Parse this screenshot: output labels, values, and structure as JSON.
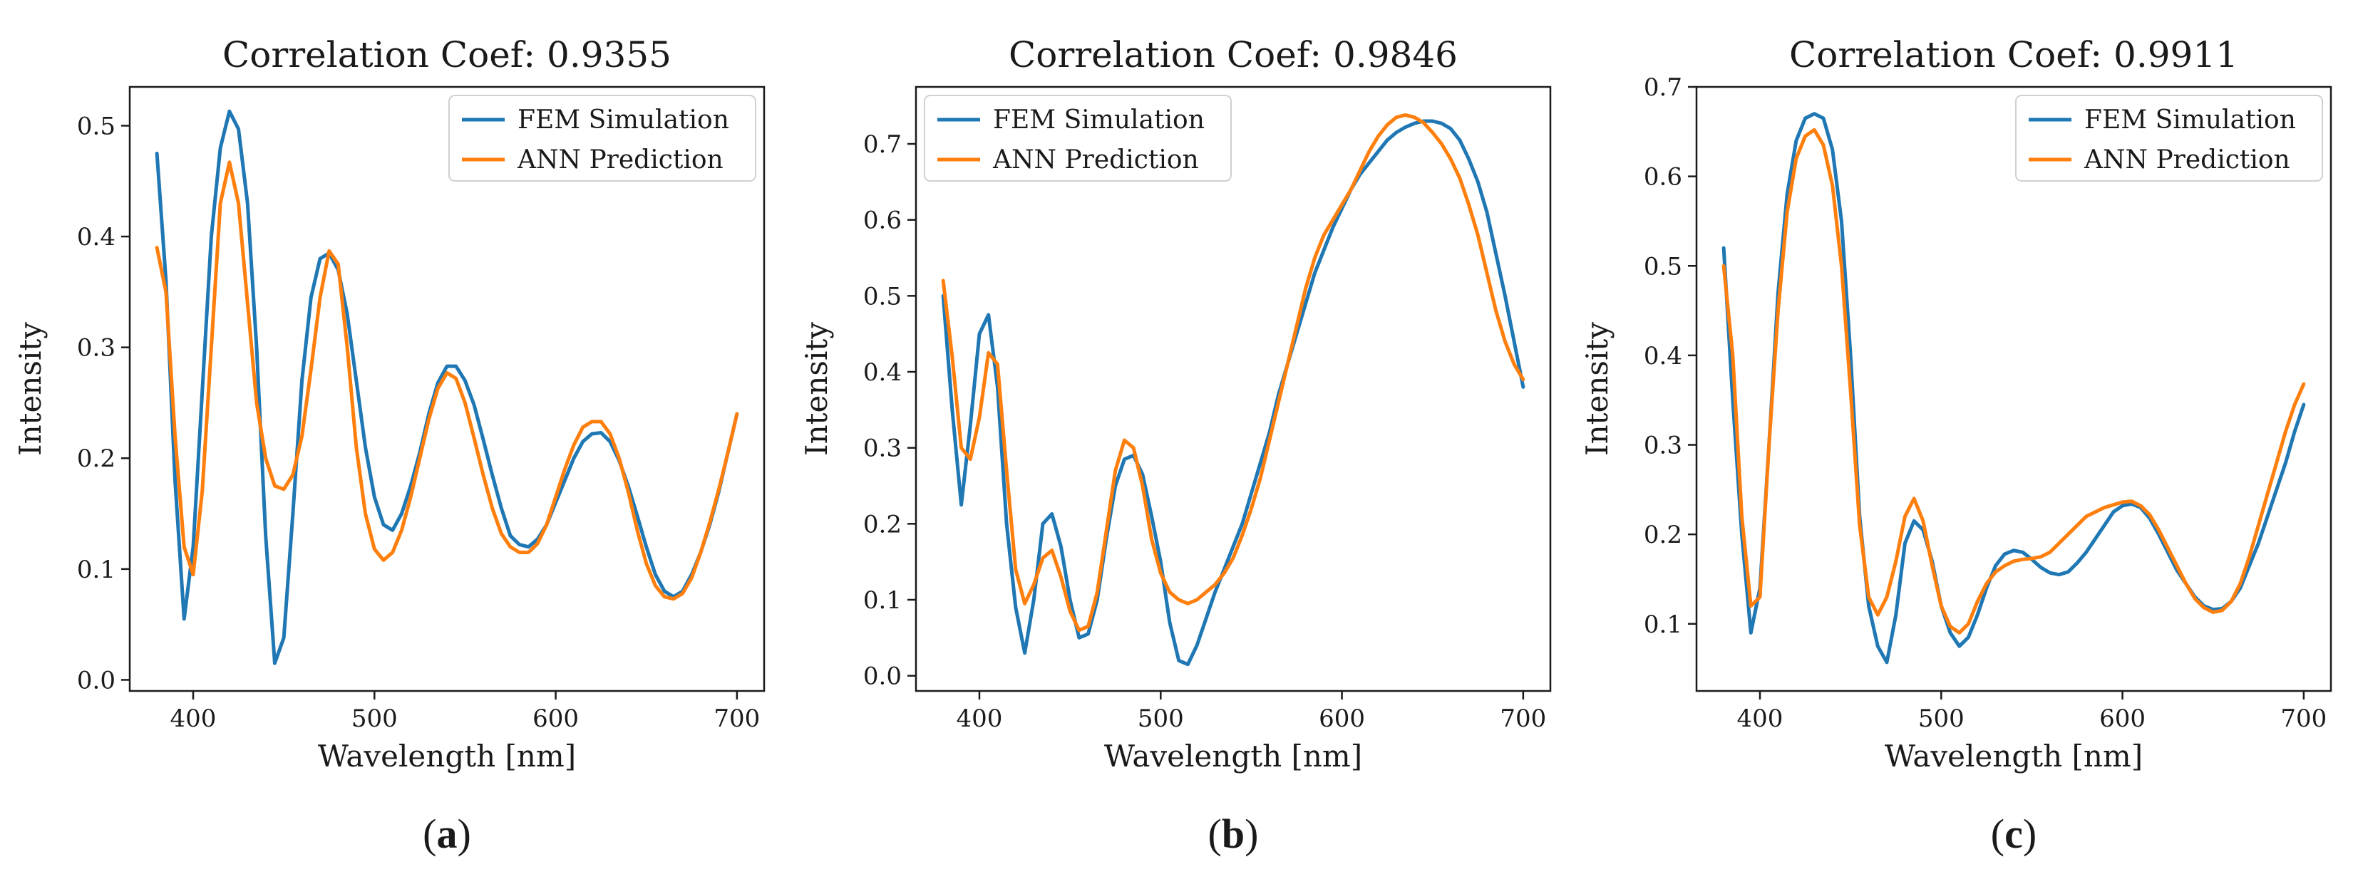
{
  "chart_data": [
    {
      "type": "line",
      "panel_label": "a",
      "title": "Correlation Coef: 0.9355",
      "xlabel": "Wavelength [nm]",
      "ylabel": "Intensity",
      "xlim": [
        365,
        715
      ],
      "ylim": [
        -0.01,
        0.535
      ],
      "xticks": [
        400,
        500,
        600,
        700
      ],
      "yticks": [
        0.0,
        0.1,
        0.2,
        0.3,
        0.4,
        0.5
      ],
      "ytick_labels": [
        "0.0",
        "0.1",
        "0.2",
        "0.3",
        "0.4",
        "0.5"
      ],
      "legend_position": "top-right",
      "series": [
        {
          "name": "FEM Simulation",
          "color": "#1f77b4",
          "x": [
            380,
            385,
            390,
            395,
            400,
            405,
            410,
            415,
            420,
            425,
            430,
            435,
            440,
            445,
            450,
            455,
            460,
            465,
            470,
            475,
            480,
            485,
            490,
            495,
            500,
            505,
            510,
            515,
            520,
            525,
            530,
            535,
            540,
            545,
            550,
            555,
            560,
            565,
            570,
            575,
            580,
            585,
            590,
            595,
            600,
            605,
            610,
            615,
            620,
            625,
            630,
            635,
            640,
            645,
            650,
            655,
            660,
            665,
            670,
            675,
            680,
            685,
            690,
            695,
            700
          ],
          "y": [
            0.475,
            0.36,
            0.18,
            0.055,
            0.12,
            0.26,
            0.4,
            0.48,
            0.513,
            0.497,
            0.43,
            0.3,
            0.13,
            0.015,
            0.038,
            0.15,
            0.27,
            0.345,
            0.38,
            0.385,
            0.37,
            0.33,
            0.27,
            0.21,
            0.165,
            0.14,
            0.135,
            0.15,
            0.175,
            0.205,
            0.24,
            0.268,
            0.283,
            0.283,
            0.27,
            0.248,
            0.217,
            0.185,
            0.155,
            0.13,
            0.122,
            0.12,
            0.127,
            0.14,
            0.16,
            0.18,
            0.2,
            0.215,
            0.222,
            0.223,
            0.215,
            0.198,
            0.175,
            0.148,
            0.12,
            0.095,
            0.08,
            0.075,
            0.08,
            0.095,
            0.115,
            0.14,
            0.17,
            0.205,
            0.24
          ]
        },
        {
          "name": "ANN Prediction",
          "color": "#ff7f0e",
          "x": [
            380,
            385,
            390,
            395,
            400,
            405,
            410,
            415,
            420,
            425,
            430,
            435,
            440,
            445,
            450,
            455,
            460,
            465,
            470,
            475,
            480,
            485,
            490,
            495,
            500,
            505,
            510,
            515,
            520,
            525,
            530,
            535,
            540,
            545,
            550,
            555,
            560,
            565,
            570,
            575,
            580,
            585,
            590,
            595,
            600,
            605,
            610,
            615,
            620,
            625,
            630,
            635,
            640,
            645,
            650,
            655,
            660,
            665,
            670,
            675,
            680,
            685,
            690,
            695,
            700
          ],
          "y": [
            0.39,
            0.35,
            0.22,
            0.12,
            0.095,
            0.17,
            0.3,
            0.43,
            0.467,
            0.43,
            0.34,
            0.25,
            0.2,
            0.175,
            0.172,
            0.185,
            0.22,
            0.28,
            0.345,
            0.387,
            0.375,
            0.3,
            0.21,
            0.15,
            0.118,
            0.108,
            0.115,
            0.135,
            0.165,
            0.2,
            0.235,
            0.263,
            0.277,
            0.272,
            0.25,
            0.218,
            0.185,
            0.155,
            0.132,
            0.12,
            0.115,
            0.115,
            0.123,
            0.14,
            0.165,
            0.19,
            0.212,
            0.228,
            0.233,
            0.233,
            0.222,
            0.2,
            0.17,
            0.135,
            0.105,
            0.085,
            0.075,
            0.073,
            0.078,
            0.092,
            0.115,
            0.142,
            0.172,
            0.205,
            0.24
          ]
        }
      ]
    },
    {
      "type": "line",
      "panel_label": "b",
      "title": "Correlation Coef: 0.9846",
      "xlabel": "Wavelength [nm]",
      "ylabel": "Intensity",
      "xlim": [
        365,
        715
      ],
      "ylim": [
        -0.02,
        0.775
      ],
      "xticks": [
        400,
        500,
        600,
        700
      ],
      "yticks": [
        0.0,
        0.1,
        0.2,
        0.3,
        0.4,
        0.5,
        0.6,
        0.7
      ],
      "ytick_labels": [
        "0.0",
        "0.1",
        "0.2",
        "0.3",
        "0.4",
        "0.5",
        "0.6",
        "0.7"
      ],
      "legend_position": "top-left",
      "series": [
        {
          "name": "FEM Simulation",
          "color": "#1f77b4",
          "x": [
            380,
            385,
            390,
            395,
            400,
            405,
            410,
            415,
            420,
            425,
            430,
            435,
            440,
            445,
            450,
            455,
            460,
            465,
            470,
            475,
            480,
            485,
            490,
            495,
            500,
            505,
            510,
            515,
            520,
            525,
            530,
            535,
            540,
            545,
            550,
            555,
            560,
            565,
            570,
            575,
            580,
            585,
            590,
            595,
            600,
            605,
            610,
            615,
            620,
            625,
            630,
            635,
            640,
            645,
            650,
            655,
            660,
            665,
            670,
            675,
            680,
            685,
            690,
            695,
            700
          ],
          "y": [
            0.5,
            0.35,
            0.225,
            0.33,
            0.45,
            0.475,
            0.38,
            0.2,
            0.09,
            0.03,
            0.1,
            0.2,
            0.213,
            0.17,
            0.1,
            0.05,
            0.055,
            0.1,
            0.18,
            0.25,
            0.285,
            0.29,
            0.265,
            0.21,
            0.15,
            0.07,
            0.02,
            0.015,
            0.04,
            0.075,
            0.11,
            0.14,
            0.17,
            0.2,
            0.24,
            0.28,
            0.32,
            0.37,
            0.41,
            0.45,
            0.49,
            0.53,
            0.56,
            0.59,
            0.615,
            0.64,
            0.66,
            0.675,
            0.69,
            0.705,
            0.715,
            0.722,
            0.727,
            0.73,
            0.73,
            0.727,
            0.72,
            0.705,
            0.68,
            0.65,
            0.61,
            0.555,
            0.5,
            0.44,
            0.38
          ]
        },
        {
          "name": "ANN Prediction",
          "color": "#ff7f0e",
          "x": [
            380,
            385,
            390,
            395,
            400,
            405,
            410,
            415,
            420,
            425,
            430,
            435,
            440,
            445,
            450,
            455,
            460,
            465,
            470,
            475,
            480,
            485,
            490,
            495,
            500,
            505,
            510,
            515,
            520,
            525,
            530,
            535,
            540,
            545,
            550,
            555,
            560,
            565,
            570,
            575,
            580,
            585,
            590,
            595,
            600,
            605,
            610,
            615,
            620,
            625,
            630,
            635,
            640,
            645,
            650,
            655,
            660,
            665,
            670,
            675,
            680,
            685,
            690,
            695,
            700
          ],
          "y": [
            0.52,
            0.42,
            0.3,
            0.285,
            0.34,
            0.425,
            0.41,
            0.27,
            0.14,
            0.095,
            0.12,
            0.155,
            0.165,
            0.13,
            0.085,
            0.06,
            0.065,
            0.11,
            0.19,
            0.27,
            0.31,
            0.3,
            0.25,
            0.18,
            0.135,
            0.11,
            0.1,
            0.095,
            0.1,
            0.11,
            0.12,
            0.135,
            0.155,
            0.185,
            0.22,
            0.26,
            0.31,
            0.36,
            0.41,
            0.46,
            0.51,
            0.55,
            0.58,
            0.6,
            0.62,
            0.64,
            0.665,
            0.69,
            0.71,
            0.725,
            0.735,
            0.738,
            0.735,
            0.728,
            0.715,
            0.7,
            0.68,
            0.655,
            0.62,
            0.58,
            0.53,
            0.48,
            0.44,
            0.41,
            0.39
          ]
        }
      ]
    },
    {
      "type": "line",
      "panel_label": "c",
      "title": "Correlation Coef: 0.9911",
      "xlabel": "Wavelength [nm]",
      "ylabel": "Intensity",
      "xlim": [
        365,
        715
      ],
      "ylim": [
        0.025,
        0.7
      ],
      "xticks": [
        400,
        500,
        600,
        700
      ],
      "yticks": [
        0.1,
        0.2,
        0.3,
        0.4,
        0.5,
        0.6,
        0.7
      ],
      "ytick_labels": [
        "0.1",
        "0.2",
        "0.3",
        "0.4",
        "0.5",
        "0.6",
        "0.7"
      ],
      "legend_position": "top-right",
      "series": [
        {
          "name": "FEM Simulation",
          "color": "#1f77b4",
          "x": [
            380,
            385,
            390,
            395,
            400,
            405,
            410,
            415,
            420,
            425,
            430,
            435,
            440,
            445,
            450,
            455,
            460,
            465,
            470,
            475,
            480,
            485,
            490,
            495,
            500,
            505,
            510,
            515,
            520,
            525,
            530,
            535,
            540,
            545,
            550,
            555,
            560,
            565,
            570,
            575,
            580,
            585,
            590,
            595,
            600,
            605,
            610,
            615,
            620,
            625,
            630,
            635,
            640,
            645,
            650,
            655,
            660,
            665,
            670,
            675,
            680,
            685,
            690,
            695,
            700
          ],
          "y": [
            0.52,
            0.35,
            0.2,
            0.09,
            0.14,
            0.3,
            0.47,
            0.58,
            0.64,
            0.665,
            0.67,
            0.665,
            0.63,
            0.55,
            0.4,
            0.22,
            0.12,
            0.075,
            0.057,
            0.11,
            0.19,
            0.215,
            0.205,
            0.17,
            0.12,
            0.09,
            0.075,
            0.085,
            0.11,
            0.14,
            0.165,
            0.178,
            0.182,
            0.18,
            0.172,
            0.163,
            0.157,
            0.155,
            0.158,
            0.168,
            0.18,
            0.195,
            0.21,
            0.225,
            0.232,
            0.234,
            0.23,
            0.218,
            0.2,
            0.18,
            0.16,
            0.145,
            0.13,
            0.12,
            0.116,
            0.117,
            0.125,
            0.14,
            0.165,
            0.19,
            0.22,
            0.25,
            0.28,
            0.315,
            0.345
          ]
        },
        {
          "name": "ANN Prediction",
          "color": "#ff7f0e",
          "x": [
            380,
            385,
            390,
            395,
            400,
            405,
            410,
            415,
            420,
            425,
            430,
            435,
            440,
            445,
            450,
            455,
            460,
            465,
            470,
            475,
            480,
            485,
            490,
            495,
            500,
            505,
            510,
            515,
            520,
            525,
            530,
            535,
            540,
            545,
            550,
            555,
            560,
            565,
            570,
            575,
            580,
            585,
            590,
            595,
            600,
            605,
            610,
            615,
            620,
            625,
            630,
            635,
            640,
            645,
            650,
            655,
            660,
            665,
            670,
            675,
            680,
            685,
            690,
            695,
            700
          ],
          "y": [
            0.5,
            0.4,
            0.22,
            0.12,
            0.13,
            0.3,
            0.45,
            0.56,
            0.62,
            0.645,
            0.652,
            0.635,
            0.59,
            0.5,
            0.36,
            0.21,
            0.13,
            0.11,
            0.13,
            0.17,
            0.22,
            0.24,
            0.215,
            0.165,
            0.12,
            0.097,
            0.09,
            0.1,
            0.125,
            0.145,
            0.158,
            0.165,
            0.17,
            0.172,
            0.173,
            0.175,
            0.18,
            0.19,
            0.2,
            0.21,
            0.22,
            0.225,
            0.23,
            0.233,
            0.236,
            0.237,
            0.232,
            0.222,
            0.205,
            0.185,
            0.165,
            0.145,
            0.128,
            0.118,
            0.113,
            0.115,
            0.125,
            0.145,
            0.175,
            0.21,
            0.245,
            0.28,
            0.315,
            0.345,
            0.368
          ]
        }
      ]
    }
  ]
}
